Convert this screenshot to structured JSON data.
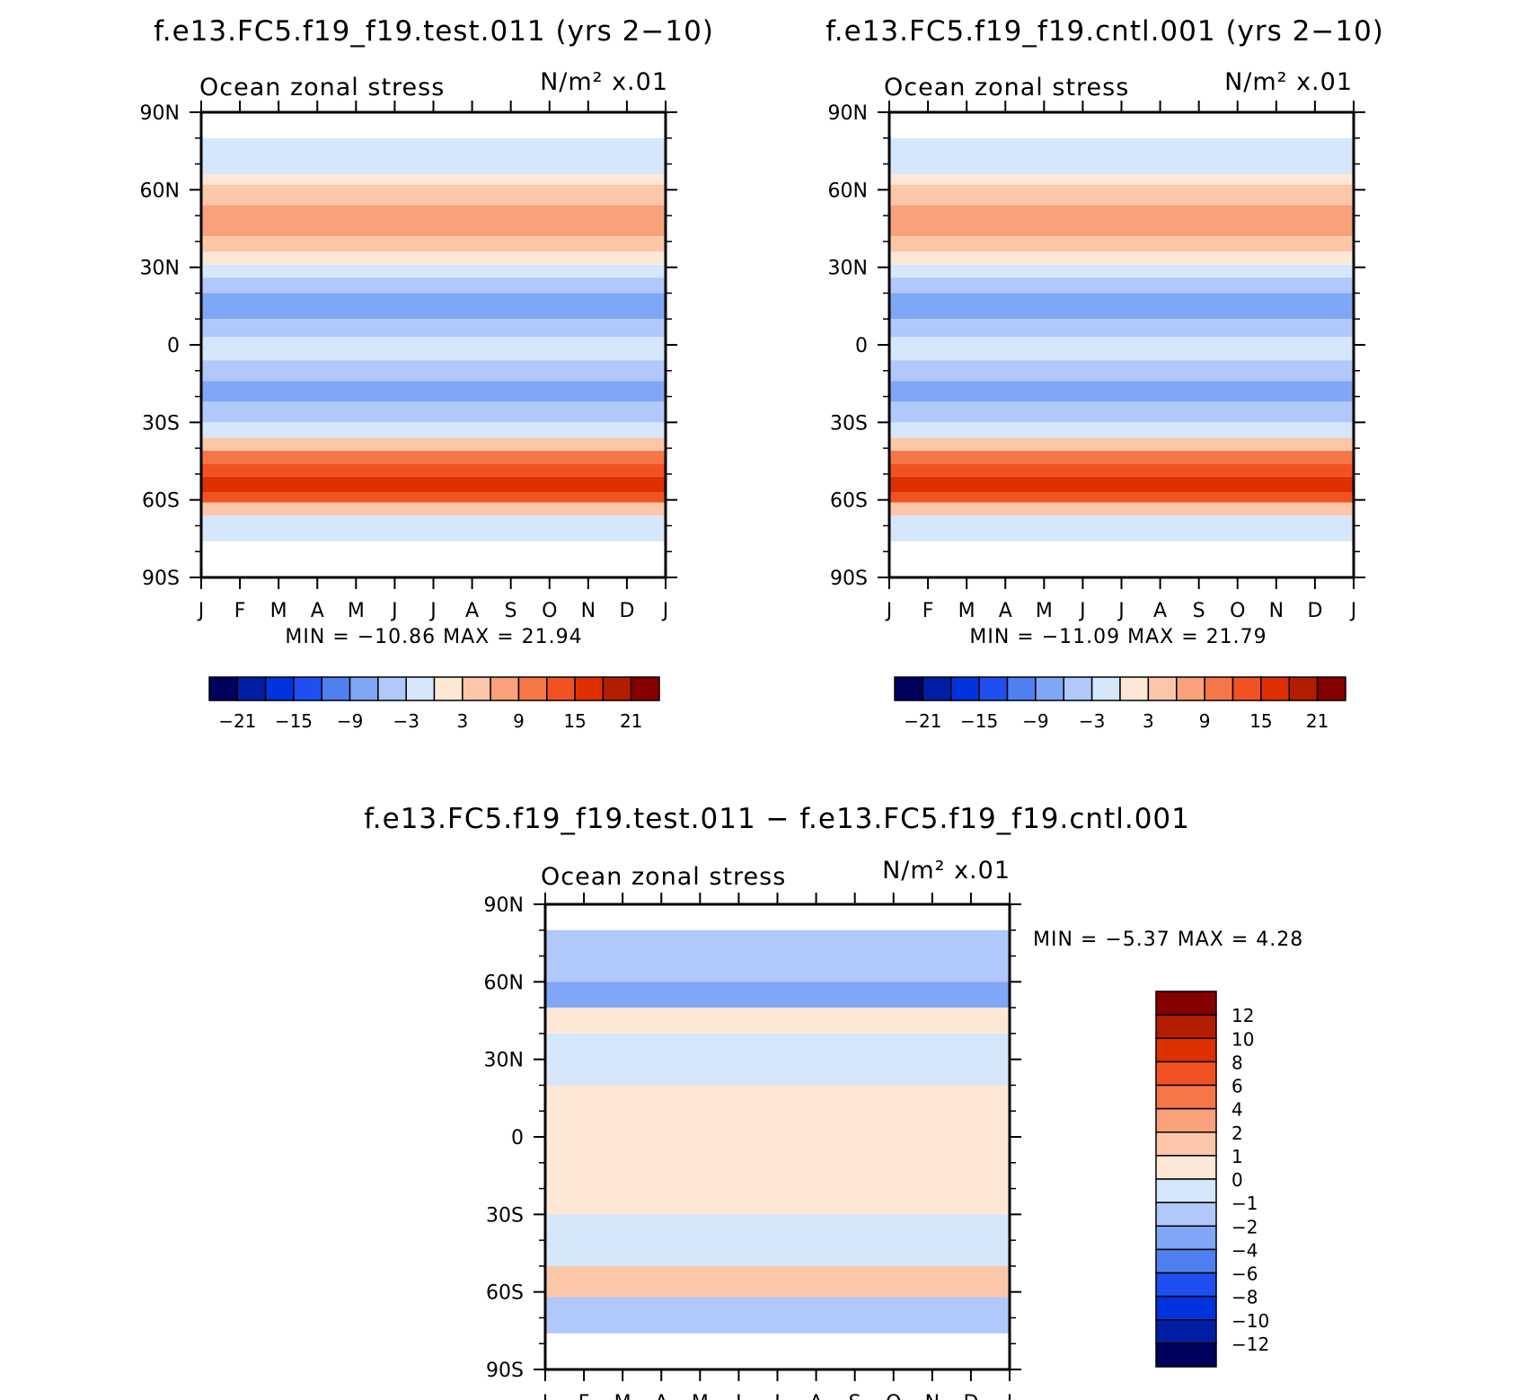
{
  "chart_data": [
    {
      "type": "heatmap",
      "title": "f.e13.FC5.f19_f19.test.011 (yrs 2−10)",
      "left_label": "Ocean zonal stress",
      "units_label": "N/m² x.01",
      "x_ticks": [
        "J",
        "F",
        "M",
        "A",
        "M",
        "J",
        "J",
        "A",
        "S",
        "O",
        "N",
        "D",
        "J"
      ],
      "y_ticks": [
        "90N",
        "60N",
        "30N",
        "0",
        "30S",
        "60S",
        "90S"
      ],
      "ylim": [
        -90,
        90
      ],
      "min_max_label": "MIN = −10.86  MAX =   21.94",
      "min": -10.86,
      "max": 21.94,
      "colorbar_labels": [
        "−21",
        "−15",
        "−9",
        "−3",
        "3",
        "9",
        "15",
        "21"
      ],
      "colorbar_levels": [
        -24,
        -21,
        -18,
        -15,
        -12,
        -9,
        -6,
        -3,
        0,
        3,
        6,
        9,
        12,
        15,
        18,
        21,
        24
      ],
      "bands": [
        {
          "lat_from": 80,
          "lat_to": 66,
          "value": -1
        },
        {
          "lat_from": 66,
          "lat_to": 62,
          "value": 1
        },
        {
          "lat_from": 62,
          "lat_to": 54,
          "value": 4
        },
        {
          "lat_from": 54,
          "lat_to": 42,
          "value": 7
        },
        {
          "lat_from": 42,
          "lat_to": 36,
          "value": 4
        },
        {
          "lat_from": 36,
          "lat_to": 31,
          "value": 1
        },
        {
          "lat_from": 31,
          "lat_to": 26,
          "value": -2
        },
        {
          "lat_from": 26,
          "lat_to": 20,
          "value": -4
        },
        {
          "lat_from": 20,
          "lat_to": 10,
          "value": -8
        },
        {
          "lat_from": 10,
          "lat_to": 3,
          "value": -4
        },
        {
          "lat_from": 3,
          "lat_to": -6,
          "value": -1
        },
        {
          "lat_from": -6,
          "lat_to": -14,
          "value": -4
        },
        {
          "lat_from": -14,
          "lat_to": -22,
          "value": -9
        },
        {
          "lat_from": -22,
          "lat_to": -30,
          "value": -4
        },
        {
          "lat_from": -30,
          "lat_to": -36,
          "value": -1
        },
        {
          "lat_from": -36,
          "lat_to": -41,
          "value": 4
        },
        {
          "lat_from": -41,
          "lat_to": -46,
          "value": 9
        },
        {
          "lat_from": -46,
          "lat_to": -51,
          "value": 13
        },
        {
          "lat_from": -51,
          "lat_to": -57,
          "value": 17
        },
        {
          "lat_from": -57,
          "lat_to": -61,
          "value": 13
        },
        {
          "lat_from": -61,
          "lat_to": -66,
          "value": 5
        },
        {
          "lat_from": -66,
          "lat_to": -76,
          "value": -1
        }
      ]
    },
    {
      "type": "heatmap",
      "title": "f.e13.FC5.f19_f19.cntl.001 (yrs 2−10)",
      "left_label": "Ocean zonal stress",
      "units_label": "N/m² x.01",
      "x_ticks": [
        "J",
        "F",
        "M",
        "A",
        "M",
        "J",
        "J",
        "A",
        "S",
        "O",
        "N",
        "D",
        "J"
      ],
      "y_ticks": [
        "90N",
        "60N",
        "30N",
        "0",
        "30S",
        "60S",
        "90S"
      ],
      "ylim": [
        -90,
        90
      ],
      "min_max_label": "MIN = −11.09  MAX =   21.79",
      "min": -11.09,
      "max": 21.79,
      "colorbar_labels": [
        "−21",
        "−15",
        "−9",
        "−3",
        "3",
        "9",
        "15",
        "21"
      ],
      "colorbar_levels": [
        -24,
        -21,
        -18,
        -15,
        -12,
        -9,
        -6,
        -3,
        0,
        3,
        6,
        9,
        12,
        15,
        18,
        21,
        24
      ],
      "bands": [
        {
          "lat_from": 80,
          "lat_to": 66,
          "value": -2
        },
        {
          "lat_from": 66,
          "lat_to": 62,
          "value": 1
        },
        {
          "lat_from": 62,
          "lat_to": 54,
          "value": 4
        },
        {
          "lat_from": 54,
          "lat_to": 42,
          "value": 7
        },
        {
          "lat_from": 42,
          "lat_to": 36,
          "value": 4
        },
        {
          "lat_from": 36,
          "lat_to": 31,
          "value": 1
        },
        {
          "lat_from": 31,
          "lat_to": 26,
          "value": -2
        },
        {
          "lat_from": 26,
          "lat_to": 20,
          "value": -4
        },
        {
          "lat_from": 20,
          "lat_to": 10,
          "value": -8
        },
        {
          "lat_from": 10,
          "lat_to": 3,
          "value": -4
        },
        {
          "lat_from": 3,
          "lat_to": -6,
          "value": -1
        },
        {
          "lat_from": -6,
          "lat_to": -14,
          "value": -4
        },
        {
          "lat_from": -14,
          "lat_to": -22,
          "value": -9
        },
        {
          "lat_from": -22,
          "lat_to": -30,
          "value": -4
        },
        {
          "lat_from": -30,
          "lat_to": -36,
          "value": -1
        },
        {
          "lat_from": -36,
          "lat_to": -41,
          "value": 4
        },
        {
          "lat_from": -41,
          "lat_to": -46,
          "value": 9
        },
        {
          "lat_from": -46,
          "lat_to": -51,
          "value": 13
        },
        {
          "lat_from": -51,
          "lat_to": -57,
          "value": 17
        },
        {
          "lat_from": -57,
          "lat_to": -61,
          "value": 13
        },
        {
          "lat_from": -61,
          "lat_to": -66,
          "value": 5
        },
        {
          "lat_from": -66,
          "lat_to": -76,
          "value": -1
        }
      ]
    },
    {
      "type": "heatmap",
      "title": "f.e13.FC5.f19_f19.test.011 − f.e13.FC5.f19_f19.cntl.001",
      "left_label": "Ocean zonal stress",
      "units_label": "N/m² x.01",
      "x_ticks": [
        "J",
        "F",
        "M",
        "A",
        "M",
        "J",
        "J",
        "A",
        "S",
        "O",
        "N",
        "D",
        "J"
      ],
      "y_ticks": [
        "90N",
        "60N",
        "30N",
        "0",
        "30S",
        "60S",
        "90S"
      ],
      "ylim": [
        -90,
        90
      ],
      "min_max_label": "MIN =   −5.37  MAX =     4.28",
      "min": -5.37,
      "max": 4.28,
      "colorbar_labels": [
        "12",
        "10",
        "8",
        "6",
        "4",
        "2",
        "1",
        "0",
        "−1",
        "−2",
        "−4",
        "−6",
        "−8",
        "−10",
        "−12"
      ],
      "colorbar_levels": [
        -14,
        -12,
        -10,
        -8,
        -6,
        -4,
        -2,
        -1,
        0,
        1,
        2,
        4,
        6,
        8,
        10,
        12,
        14
      ],
      "bands": [
        {
          "lat_from": 80,
          "lat_to": 60,
          "value": -2
        },
        {
          "lat_from": 60,
          "lat_to": 50,
          "value": -4
        },
        {
          "lat_from": 50,
          "lat_to": 40,
          "value": 0.5
        },
        {
          "lat_from": 40,
          "lat_to": 20,
          "value": -0.5
        },
        {
          "lat_from": 20,
          "lat_to": -30,
          "value": 0.5
        },
        {
          "lat_from": -30,
          "lat_to": -50,
          "value": -0.5
        },
        {
          "lat_from": -50,
          "lat_to": -62,
          "value": 1.5
        },
        {
          "lat_from": -62,
          "lat_to": -76,
          "value": -1.5
        }
      ]
    }
  ]
}
